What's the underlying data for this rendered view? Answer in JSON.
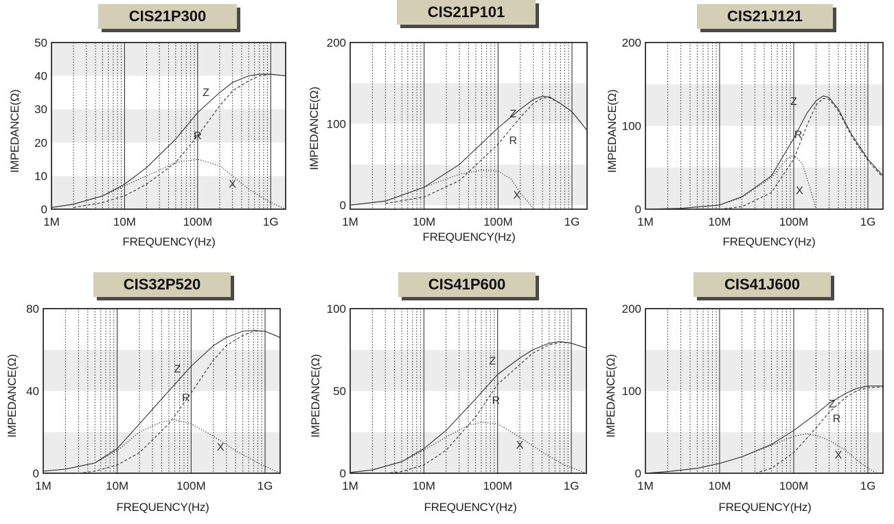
{
  "axis_labels": {
    "y": "IMPEDANCE(Ω)",
    "x": "FREQUENCY(Hz)"
  },
  "x_ticks": [
    "1M",
    "10M",
    "100M",
    "1G"
  ],
  "chart_data": [
    {
      "type": "line",
      "title": "CIS21P300",
      "xscale": "log",
      "xlim": [
        1000000,
        1600000000
      ],
      "ylim": [
        0,
        50
      ],
      "yticks": [
        "0",
        "10",
        "20",
        "30",
        "40",
        "50"
      ],
      "xlabel": "FREQUENCY(Hz)",
      "ylabel": "IMPEDANCE(Ω)",
      "series": [
        {
          "name": "Z",
          "style": "solid",
          "x": [
            1000000.0,
            2000000.0,
            5000000.0,
            10000000.0,
            20000000.0,
            50000000.0,
            100000000.0,
            200000000.0,
            300000000.0,
            500000000.0,
            700000000.0,
            1000000000.0,
            1600000000.0
          ],
          "y": [
            0.5,
            1.5,
            4,
            7.5,
            12.5,
            21,
            29,
            35,
            38,
            40,
            40.5,
            40.5,
            40
          ]
        },
        {
          "name": "R",
          "style": "dashed",
          "x": [
            2000000.0,
            5000000.0,
            10000000.0,
            20000000.0,
            50000000.0,
            100000000.0,
            200000000.0,
            300000000.0,
            500000000.0,
            700000000.0,
            1000000000.0,
            1600000000.0
          ],
          "y": [
            0.5,
            2,
            4,
            7.5,
            14,
            22,
            31,
            35.5,
            38.5,
            40,
            40.5,
            40
          ]
        },
        {
          "name": "X",
          "style": "dotted",
          "x": [
            1000000.0,
            2000000.0,
            5000000.0,
            10000000.0,
            20000000.0,
            50000000.0,
            100000000.0,
            200000000.0,
            300000000.0,
            500000000.0,
            1000000000.0,
            1600000000.0
          ],
          "y": [
            0.5,
            1.5,
            4,
            7,
            10,
            14,
            15,
            13,
            10,
            6,
            2,
            0
          ]
        }
      ],
      "labels": [
        {
          "text": "Z",
          "x": 130000000.0,
          "y": 34
        },
        {
          "text": "R",
          "x": 100000000.0,
          "y": 21
        },
        {
          "text": "X",
          "x": 300000000.0,
          "y": 6.5
        }
      ]
    },
    {
      "type": "line",
      "title": "CIS21P101",
      "xscale": "log",
      "xlim": [
        1000000,
        1600000000
      ],
      "ylim": [
        -5,
        200
      ],
      "yticks": [
        "0",
        "100",
        "200"
      ],
      "xlabel": "FREQUENCY(Hz)",
      "ylabel": "IMPEDANCE(Ω)",
      "series": [
        {
          "name": "Z",
          "style": "solid",
          "x": [
            1000000.0,
            3000000.0,
            10000000.0,
            30000000.0,
            100000000.0,
            200000000.0,
            300000000.0,
            400000000.0,
            500000000.0,
            700000000.0,
            1000000000.0,
            1600000000.0
          ],
          "y": [
            0,
            5,
            22,
            50,
            95,
            118,
            130,
            134,
            133,
            125,
            115,
            92
          ]
        },
        {
          "name": "R",
          "style": "dashed",
          "x": [
            3000000.0,
            10000000.0,
            30000000.0,
            100000000.0,
            200000000.0,
            300000000.0,
            400000000.0,
            500000000.0,
            700000000.0,
            1000000000.0,
            1600000000.0
          ],
          "y": [
            2,
            10,
            30,
            75,
            108,
            125,
            132,
            132,
            125,
            115,
            92
          ]
        },
        {
          "name": "X",
          "style": "dotted",
          "x": [
            1000000.0,
            3000000.0,
            10000000.0,
            30000000.0,
            60000000.0,
            100000000.0,
            150000000.0,
            200000000.0,
            300000000.0
          ],
          "y": [
            0,
            5,
            22,
            38,
            43,
            42,
            32,
            15,
            -4
          ]
        }
      ],
      "labels": [
        {
          "text": "Z",
          "x": 160000000.0,
          "y": 108
        },
        {
          "text": "R",
          "x": 160000000.0,
          "y": 75
        },
        {
          "text": "X",
          "x": 180000000.0,
          "y": 8
        }
      ]
    },
    {
      "type": "line",
      "title": "CIS21J121",
      "xscale": "log",
      "xlim": [
        1000000,
        1600000000
      ],
      "ylim": [
        0,
        200
      ],
      "yticks": [
        "0",
        "100",
        "200"
      ],
      "xlabel": "FREQUENCY(Hz)",
      "ylabel": "IMPEDANCE(Ω)",
      "series": [
        {
          "name": "Z",
          "style": "solid",
          "x": [
            1000000.0,
            3000000.0,
            10000000.0,
            20000000.0,
            50000000.0,
            100000000.0,
            150000000.0,
            200000000.0,
            250000000.0,
            300000000.0,
            400000000.0,
            600000000.0,
            1000000000.0,
            1600000000.0
          ],
          "y": [
            0,
            1,
            5,
            15,
            40,
            85,
            115,
            130,
            136,
            134,
            120,
            90,
            60,
            40
          ]
        },
        {
          "name": "R",
          "style": "dashed",
          "x": [
            10000000.0,
            20000000.0,
            50000000.0,
            100000000.0,
            150000000.0,
            200000000.0,
            250000000.0,
            300000000.0,
            400000000.0,
            600000000.0,
            1000000000.0,
            1600000000.0
          ],
          "y": [
            0,
            3,
            20,
            60,
            100,
            125,
            133,
            132,
            118,
            88,
            58,
            38
          ]
        },
        {
          "name": "X",
          "style": "dotted",
          "x": [
            1000000.0,
            3000000.0,
            10000000.0,
            20000000.0,
            50000000.0,
            80000000.0,
            100000000.0,
            130000000.0,
            160000000.0,
            200000000.0
          ],
          "y": [
            0,
            1,
            5,
            14,
            38,
            60,
            65,
            55,
            30,
            0
          ]
        }
      ],
      "labels": [
        {
          "text": "Z",
          "x": 100000000.0,
          "y": 125
        },
        {
          "text": "R",
          "x": 115000000.0,
          "y": 85
        },
        {
          "text": "X",
          "x": 120000000.0,
          "y": 18
        }
      ]
    },
    {
      "type": "line",
      "title": "CIS32P520",
      "xscale": "log",
      "xlim": [
        1000000,
        1600000000
      ],
      "ylim": [
        0,
        80
      ],
      "yticks": [
        "0",
        "40",
        "80"
      ],
      "xlabel": "FREQUENCY(Hz)",
      "ylabel": "IMPEDANCE(Ω)",
      "series": [
        {
          "name": "Z",
          "style": "solid",
          "x": [
            1000000.0,
            2000000.0,
            5000000.0,
            10000000.0,
            20000000.0,
            50000000.0,
            100000000.0,
            200000000.0,
            300000000.0,
            500000000.0,
            700000000.0,
            1000000000.0,
            1600000000.0
          ],
          "y": [
            1,
            2,
            5,
            12,
            24,
            40,
            52,
            62,
            66,
            69,
            69.5,
            69,
            66
          ]
        },
        {
          "name": "R",
          "style": "dashed",
          "x": [
            3000000.0,
            5000000.0,
            10000000.0,
            20000000.0,
            50000000.0,
            100000000.0,
            200000000.0,
            300000000.0,
            500000000.0,
            700000000.0,
            1000000000.0,
            1600000000.0
          ],
          "y": [
            0,
            1,
            4,
            10,
            24,
            39,
            55,
            62,
            67,
            69,
            69,
            66
          ]
        },
        {
          "name": "X",
          "style": "dotted",
          "x": [
            1000000.0,
            2000000.0,
            5000000.0,
            10000000.0,
            20000000.0,
            40000000.0,
            60000000.0,
            100000000.0,
            200000000.0,
            400000000.0,
            800000000.0,
            1600000000.0
          ],
          "y": [
            1,
            2,
            5,
            11,
            20,
            25,
            26,
            24,
            18,
            11,
            5,
            0
          ]
        }
      ],
      "labels": [
        {
          "text": "Z",
          "x": 65000000.0,
          "y": 49
        },
        {
          "text": "R",
          "x": 85000000.0,
          "y": 35
        },
        {
          "text": "X",
          "x": 250000000.0,
          "y": 11
        }
      ]
    },
    {
      "type": "line",
      "title": "CIS41P600",
      "xscale": "log",
      "xlim": [
        1000000,
        1600000000
      ],
      "ylim": [
        0,
        100
      ],
      "yticks": [
        "0",
        "50",
        "100"
      ],
      "xlabel": "FREQUENCY(Hz)",
      "ylabel": "IMPEDANCE(Ω)",
      "series": [
        {
          "name": "Z",
          "style": "solid",
          "x": [
            1000000.0,
            2000000.0,
            5000000.0,
            10000000.0,
            20000000.0,
            50000000.0,
            100000000.0,
            200000000.0,
            300000000.0,
            500000000.0,
            700000000.0,
            1000000000.0,
            1600000000.0
          ],
          "y": [
            0.5,
            2,
            7,
            15,
            26,
            45,
            60,
            70,
            75,
            79,
            80,
            79,
            76
          ]
        },
        {
          "name": "R",
          "style": "dashed",
          "x": [
            3000000.0,
            5000000.0,
            10000000.0,
            20000000.0,
            50000000.0,
            100000000.0,
            200000000.0,
            300000000.0,
            500000000.0,
            700000000.0,
            1000000000.0,
            1600000000.0
          ],
          "y": [
            0,
            1,
            5,
            14,
            34,
            54,
            66,
            73,
            78,
            79.5,
            79,
            76
          ]
        },
        {
          "name": "X",
          "style": "dotted",
          "x": [
            1000000.0,
            2000000.0,
            5000000.0,
            10000000.0,
            20000000.0,
            40000000.0,
            60000000.0,
            100000000.0,
            200000000.0,
            400000000.0,
            800000000.0,
            1600000000.0
          ],
          "y": [
            0.5,
            2,
            7,
            14,
            22,
            29,
            31,
            30,
            22,
            13,
            5,
            0
          ]
        }
      ],
      "labels": [
        {
          "text": "Z",
          "x": 85000000.0,
          "y": 66
        },
        {
          "text": "R",
          "x": 95000000.0,
          "y": 42
        },
        {
          "text": "X",
          "x": 200000000.0,
          "y": 15
        }
      ]
    },
    {
      "type": "line",
      "title": "CIS41J600",
      "xscale": "log",
      "xlim": [
        1000000,
        1600000000
      ],
      "ylim": [
        0,
        200
      ],
      "yticks": [
        "0",
        "100",
        "200"
      ],
      "xlabel": "FREQUENCY(Hz)",
      "ylabel": "IMPEDANCE(Ω)",
      "series": [
        {
          "name": "Z",
          "style": "solid",
          "x": [
            1000000.0,
            2000000.0,
            5000000.0,
            10000000.0,
            20000000.0,
            50000000.0,
            100000000.0,
            200000000.0,
            300000000.0,
            500000000.0,
            700000000.0,
            1000000000.0,
            1600000000.0
          ],
          "y": [
            0,
            2,
            6,
            12,
            20,
            35,
            52,
            72,
            85,
            97,
            103,
            106,
            106
          ]
        },
        {
          "name": "R",
          "style": "dashed",
          "x": [
            30000000.0,
            50000000.0,
            100000000.0,
            200000000.0,
            300000000.0,
            500000000.0,
            700000000.0,
            1000000000.0,
            1600000000.0
          ],
          "y": [
            0,
            6,
            25,
            55,
            74,
            92,
            100,
            104,
            105
          ]
        },
        {
          "name": "X",
          "style": "dotted",
          "x": [
            1000000.0,
            2000000.0,
            5000000.0,
            10000000.0,
            20000000.0,
            50000000.0,
            100000000.0,
            150000000.0,
            200000000.0,
            300000000.0,
            500000000.0,
            800000000.0,
            1300000000.0
          ],
          "y": [
            0,
            2,
            6,
            12,
            20,
            34,
            45,
            48,
            46,
            40,
            28,
            12,
            0
          ]
        }
      ],
      "labels": [
        {
          "text": "Z",
          "x": 330000000.0,
          "y": 80
        },
        {
          "text": "R",
          "x": 380000000.0,
          "y": 62
        },
        {
          "text": "X",
          "x": 400000000.0,
          "y": 18
        }
      ]
    }
  ]
}
